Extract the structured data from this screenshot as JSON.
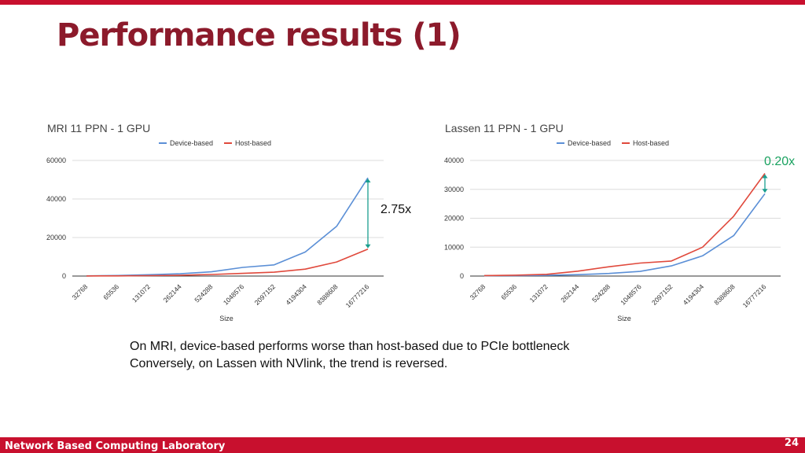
{
  "slide": {
    "title": "Performance results (1)",
    "footer_lab": "Network Based Computing Laboratory",
    "page_number": "24",
    "caption_lines": [
      "On MRI, device-based performs worse than host-based due to PCIe bottleneck",
      "Conversely, on Lassen with NVlink, the trend is reversed."
    ],
    "colors": {
      "accent": "#c8102e",
      "title": "#8c1a2b",
      "device": "#5b8fd6",
      "host": "#e0493c",
      "arrow": "#1a9e8f",
      "ratio_lassen": "#1aa260"
    }
  },
  "chart_data": [
    {
      "type": "line",
      "title": "MRI 11 PPN - 1 GPU",
      "xlabel": "Size",
      "ylabel": "",
      "categories": [
        "32768",
        "65536",
        "131072",
        "262144",
        "524288",
        "1048576",
        "2097152",
        "4194304",
        "8388608",
        "16777216"
      ],
      "series": [
        {
          "name": "Device-based",
          "values": [
            100,
            300,
            700,
            1200,
            2200,
            4500,
            5800,
            12500,
            25800,
            51000
          ]
        },
        {
          "name": "Host-based",
          "values": [
            50,
            100,
            200,
            400,
            800,
            1400,
            2000,
            3600,
            7300,
            14000
          ]
        }
      ],
      "ylim": [
        0,
        60000
      ],
      "yticks": [
        "0",
        "20000",
        "40000",
        "60000"
      ],
      "ytick_values": [
        0,
        20000,
        40000,
        60000
      ],
      "grid": true,
      "legend": "top",
      "annotation": "2.75x"
    },
    {
      "type": "line",
      "title": "Lassen 11 PPN - 1 GPU",
      "xlabel": "Size",
      "ylabel": "",
      "categories": [
        "32768",
        "65536",
        "131072",
        "262144",
        "524288",
        "1048576",
        "2097152",
        "4194304",
        "8388608",
        "16777216"
      ],
      "series": [
        {
          "name": "Device-based",
          "values": [
            100,
            150,
            250,
            500,
            900,
            1600,
            3500,
            7000,
            14000,
            28500
          ]
        },
        {
          "name": "Host-based",
          "values": [
            150,
            300,
            600,
            1700,
            3200,
            4500,
            5200,
            10000,
            20700,
            35500
          ]
        }
      ],
      "ylim": [
        0,
        40000
      ],
      "yticks": [
        "0",
        "10000",
        "20000",
        "30000",
        "40000"
      ],
      "ytick_values": [
        0,
        10000,
        20000,
        30000,
        40000
      ],
      "grid": true,
      "legend": "top",
      "annotation": "0.20x"
    }
  ]
}
